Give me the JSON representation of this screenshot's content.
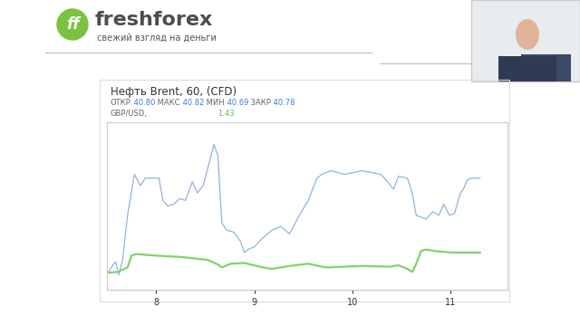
{
  "slide": {
    "logo_icon": "ff",
    "logo": "freshforex",
    "tagline": "свежий взгляд на деньги"
  },
  "chart_data": {
    "type": "line",
    "title": "Нефть Brent, 60, (CFD)",
    "ohlc": [
      {
        "name": "ОТКР",
        "value": "40.80"
      },
      {
        "name": "МАКС",
        "value": "40.82"
      },
      {
        "name": "МИН",
        "value": "40.69"
      },
      {
        "name": "ЗАКР",
        "value": "40.78"
      }
    ],
    "xlim": [
      7.5,
      11.58
    ],
    "xticks": [
      8,
      9,
      10,
      11
    ],
    "ylim": [
      39.58,
      41.38
    ],
    "y2lim": [
      1.41,
      1.5
    ],
    "tick_labels": "x",
    "grid": false,
    "series": [
      {
        "name": "Нефть Brent, 60, (CFD)",
        "color": "#8fb4e0",
        "x": [
          7.52,
          7.57,
          7.59,
          7.62,
          7.66,
          7.71,
          7.78,
          7.84,
          7.89,
          8.03,
          8.07,
          8.12,
          8.18,
          8.24,
          8.3,
          8.37,
          8.42,
          8.48,
          8.53,
          8.59,
          8.63,
          8.67,
          8.72,
          8.79,
          8.86,
          8.9,
          8.95,
          9.0,
          9.09,
          9.18,
          9.27,
          9.36,
          9.46,
          9.55,
          9.64,
          9.69,
          9.78,
          9.92,
          10.01,
          10.1,
          10.29,
          10.36,
          10.42,
          10.47,
          10.56,
          10.61,
          10.65,
          10.75,
          10.82,
          10.88,
          10.93,
          10.99,
          11.04,
          11.1,
          11.13,
          11.17,
          11.21,
          11.3
        ],
        "values": [
          39.78,
          39.86,
          39.88,
          39.74,
          39.9,
          40.38,
          40.82,
          40.7,
          40.78,
          40.78,
          40.54,
          40.48,
          40.5,
          40.56,
          40.54,
          40.74,
          40.62,
          40.7,
          40.9,
          41.14,
          41.02,
          40.3,
          40.22,
          40.2,
          40.1,
          39.98,
          40.02,
          40.04,
          40.14,
          40.22,
          40.26,
          40.18,
          40.38,
          40.54,
          40.78,
          40.82,
          40.86,
          40.82,
          40.84,
          40.86,
          40.82,
          40.74,
          40.66,
          40.8,
          40.78,
          40.62,
          40.38,
          40.34,
          40.42,
          40.38,
          40.5,
          40.38,
          40.4,
          40.62,
          40.66,
          40.76,
          40.78,
          40.78
        ]
      },
      {
        "name": "GBP/USD,",
        "color": "#7fd36a",
        "axis": "y2",
        "last_value": 1.43,
        "x": [
          7.52,
          7.61,
          7.71,
          7.75,
          7.8,
          7.98,
          8.26,
          8.53,
          8.63,
          8.67,
          8.76,
          8.9,
          9.09,
          9.18,
          9.36,
          9.55,
          9.73,
          9.92,
          10.1,
          10.38,
          10.47,
          10.56,
          10.61,
          10.65,
          10.7,
          10.75,
          10.84,
          11.02,
          11.3
        ],
        "values": [
          1.4192,
          1.4196,
          1.422,
          1.4284,
          1.4292,
          1.4284,
          1.4276,
          1.426,
          1.4236,
          1.422,
          1.424,
          1.4244,
          1.422,
          1.4212,
          1.4228,
          1.424,
          1.422,
          1.4224,
          1.4228,
          1.4224,
          1.4232,
          1.4212,
          1.4196,
          1.424,
          1.4308,
          1.4316,
          1.4308,
          1.43,
          1.43
        ]
      }
    ]
  }
}
